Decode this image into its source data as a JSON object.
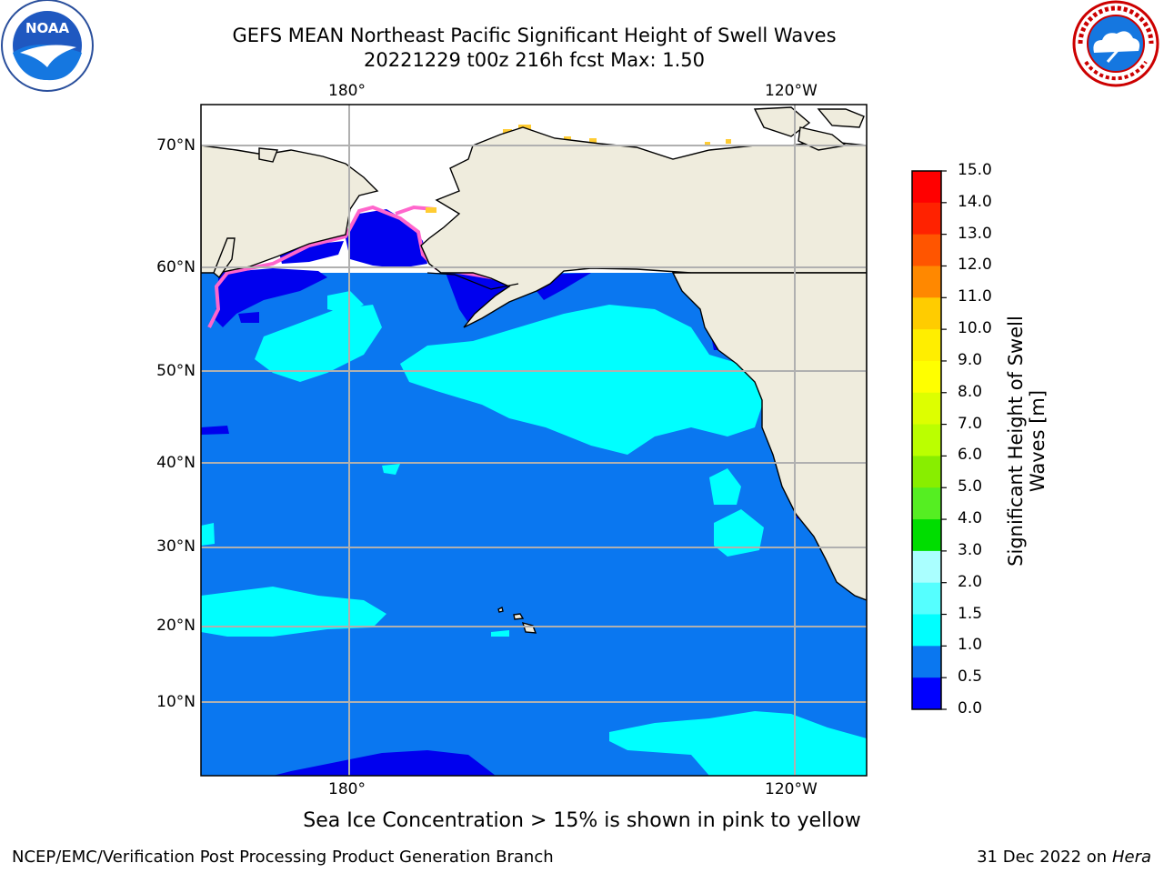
{
  "header": {
    "title_line1": "GEFS MEAN Northeast Pacific Significant Height of Swell Waves",
    "title_line2": "20221229 t00z 216h fcst   Max: 1.50"
  },
  "logos": {
    "left": "NOAA",
    "right": "NATIONAL WEATHER SERVICE"
  },
  "map": {
    "lon_labels_top": [
      "180°",
      "120°W"
    ],
    "lon_labels_bottom": [
      "180°",
      "120°W"
    ],
    "lat_labels": [
      "70°N",
      "60°N",
      "50°N",
      "40°N",
      "30°N",
      "20°N",
      "10°N"
    ],
    "colors": {
      "ocean": "#0a77f0",
      "land": "#efecdd",
      "calm": "#0000ee",
      "swell": "#00ffff",
      "ice": "#ff66cc"
    }
  },
  "colorbar": {
    "title": "Significant Height of Swell Waves [m]",
    "ticks": [
      "15.0",
      "14.0",
      "13.0",
      "12.0",
      "11.0",
      "10.0",
      "9.0",
      "8.0",
      "7.0",
      "6.0",
      "5.0",
      "4.0",
      "3.0",
      "2.0",
      "1.5",
      "1.0",
      "0.5",
      "0.0"
    ],
    "colors_top_to_bottom": [
      "#ff0000",
      "#ff2200",
      "#ff5500",
      "#ff8800",
      "#ffaa00",
      "#ffcc00",
      "#ffee00",
      "#ffff00",
      "#ddff00",
      "#bbff00",
      "#88ee00",
      "#55ee22",
      "#00dd00",
      "#55ff88",
      "#aaffff",
      "#55ffff",
      "#00ffff",
      "#0a77f0",
      "#0000ff"
    ]
  },
  "footer": {
    "note": "Sea Ice Concentration > 15% is shown in pink to yellow",
    "credit": "NCEP/EMC/Verification Post Processing Product Generation Branch",
    "date": "31 Dec 2022 on",
    "host": "Hera"
  }
}
